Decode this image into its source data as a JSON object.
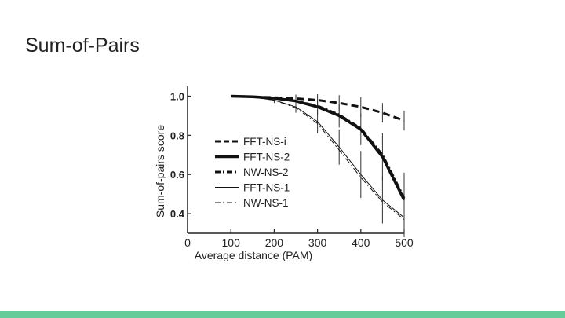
{
  "slide": {
    "title": "Sum-of-Pairs",
    "accent_color": "#66cc99"
  },
  "chart_data": {
    "type": "line",
    "title": "",
    "xlabel": "Average distance (PAM)",
    "ylabel": "Sum-of-pairs score",
    "xlim": [
      0,
      500
    ],
    "ylim": [
      0.3,
      1.05
    ],
    "xticks": [
      0,
      100,
      200,
      300,
      400,
      500
    ],
    "yticks": [
      0.4,
      0.6,
      0.8,
      1.0
    ],
    "xtick_labels": [
      "0",
      "100",
      "200",
      "300",
      "400",
      "500"
    ],
    "ytick_labels": [
      "0.4",
      "0.6",
      "0.8",
      "1.0"
    ],
    "grid": false,
    "legend_position": "bottom-left",
    "x": [
      100,
      150,
      200,
      250,
      300,
      350,
      400,
      450,
      500
    ],
    "series": [
      {
        "name": "FFT-NS-i",
        "style": "dashed",
        "width": 3,
        "values": [
          1.0,
          0.997,
          0.993,
          0.988,
          0.98,
          0.965,
          0.945,
          0.915,
          0.875
        ],
        "err": [
          0,
          0,
          0,
          0.02,
          0.03,
          0.04,
          0.05,
          0.05,
          0.05
        ]
      },
      {
        "name": "FFT-NS-2",
        "style": "solid",
        "width": 3.5,
        "values": [
          1.0,
          0.997,
          0.99,
          0.975,
          0.945,
          0.9,
          0.83,
          0.69,
          0.47
        ],
        "err": [
          0,
          0,
          0,
          0.02,
          0.04,
          0.06,
          0.08,
          0.12,
          0.14
        ]
      },
      {
        "name": "NW-NS-2",
        "style": "dashdot",
        "width": 3,
        "values": [
          1.0,
          0.997,
          0.99,
          0.975,
          0.95,
          0.905,
          0.835,
          0.7,
          0.48
        ],
        "err": [
          0,
          0,
          0,
          0,
          0,
          0,
          0,
          0,
          0
        ]
      },
      {
        "name": "FFT-NS-1",
        "style": "solid",
        "width": 1,
        "values": [
          1.0,
          0.995,
          0.98,
          0.945,
          0.87,
          0.74,
          0.6,
          0.47,
          0.38
        ],
        "err": [
          0,
          0,
          0.015,
          0.03,
          0.06,
          0.09,
          0.12,
          0.12,
          0.1
        ]
      },
      {
        "name": "NW-NS-1",
        "style": "dashdot",
        "width": 1,
        "values": [
          1.0,
          0.995,
          0.98,
          0.94,
          0.86,
          0.725,
          0.585,
          0.46,
          0.37
        ],
        "err": [
          0,
          0,
          0,
          0,
          0,
          0,
          0,
          0,
          0
        ]
      }
    ]
  }
}
